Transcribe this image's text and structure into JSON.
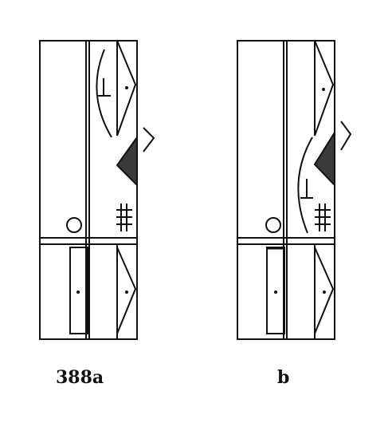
{
  "figure": {
    "captions": {
      "a": "388a",
      "b": "b"
    },
    "colors": {
      "ink": "#111111",
      "fill": "#3a3a3a",
      "paper": "#ffffff"
    },
    "symbols": {
      "staff_left": "staff-with-bar-and-room-column",
      "staff_right": "staff-with-bar-and-room-column",
      "hold_circle_icon": "circle",
      "ad_lib_bracket_icon": "bow-bracket",
      "direction_triangle_icon": "triangle-with-dot",
      "filled_wedge_icon": "filled-wedge",
      "triple_bar_icon": "triple-horizontal-strokes",
      "caret_icon": "open-angle-right",
      "inverted_t_icon": "inverted-t"
    }
  }
}
